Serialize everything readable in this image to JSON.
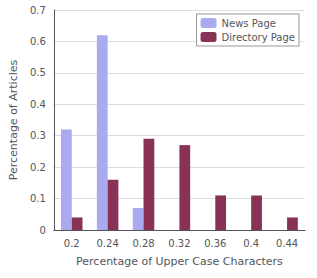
{
  "chart_data": {
    "type": "bar",
    "xlabel": "Percentage of Upper Case Characters",
    "ylabel": "Percentage of Articles",
    "categories": [
      "0.2",
      "0.24",
      "0.28",
      "0.32",
      "0.36",
      "0.4",
      "0.44"
    ],
    "series": [
      {
        "name": "News Page",
        "color": "#aaaaee",
        "values": [
          0.32,
          0.62,
          0.07,
          0.0,
          0.0,
          0.0,
          0.0
        ]
      },
      {
        "name": "Directory Page",
        "color": "#883355",
        "values": [
          0.04,
          0.16,
          0.29,
          0.27,
          0.11,
          0.11,
          0.04
        ]
      }
    ],
    "ylim": [
      0,
      0.7
    ],
    "yticks": [
      0,
      0.1,
      0.2,
      0.3,
      0.4,
      0.5,
      0.6,
      0.7
    ],
    "grid": true,
    "legend": "upper right"
  }
}
